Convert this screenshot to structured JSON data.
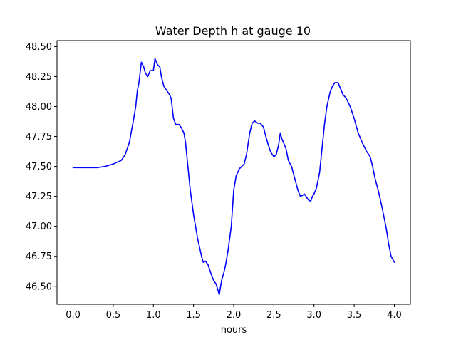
{
  "chart_data": {
    "type": "line",
    "title": "Water Depth h at gauge 10",
    "xlabel": "hours",
    "ylabel": "",
    "xlim": [
      -0.2,
      4.2
    ],
    "ylim": [
      46.35,
      48.55
    ],
    "xticks": [
      0.0,
      0.5,
      1.0,
      1.5,
      2.0,
      2.5,
      3.0,
      3.5,
      4.0
    ],
    "xtick_labels": [
      "0.0",
      "0.5",
      "1.0",
      "1.5",
      "2.0",
      "2.5",
      "3.0",
      "3.5",
      "4.0"
    ],
    "yticks": [
      46.5,
      46.75,
      47.0,
      47.25,
      47.5,
      47.75,
      48.0,
      48.25,
      48.5
    ],
    "ytick_labels": [
      "46.50",
      "46.75",
      "47.00",
      "47.25",
      "47.50",
      "47.75",
      "48.00",
      "48.25",
      "48.50"
    ],
    "grid": false,
    "series": [
      {
        "color": "#0000ff",
        "x": [
          0.0,
          0.15,
          0.3,
          0.4,
          0.5,
          0.6,
          0.65,
          0.7,
          0.75,
          0.78,
          0.8,
          0.82,
          0.85,
          0.88,
          0.9,
          0.93,
          0.96,
          1.0,
          1.02,
          1.05,
          1.08,
          1.1,
          1.13,
          1.17,
          1.2,
          1.22,
          1.25,
          1.28,
          1.32,
          1.35,
          1.38,
          1.4,
          1.43,
          1.46,
          1.5,
          1.55,
          1.6,
          1.62,
          1.65,
          1.68,
          1.72,
          1.75,
          1.78,
          1.82,
          1.85,
          1.88,
          1.9,
          1.93,
          1.97,
          2.0,
          2.03,
          2.07,
          2.1,
          2.13,
          2.16,
          2.2,
          2.23,
          2.26,
          2.3,
          2.33,
          2.37,
          2.4,
          2.43,
          2.46,
          2.5,
          2.53,
          2.56,
          2.58,
          2.6,
          2.62,
          2.65,
          2.68,
          2.72,
          2.76,
          2.8,
          2.83,
          2.86,
          2.88,
          2.9,
          2.93,
          2.96,
          2.98,
          3.0,
          3.03,
          3.07,
          3.1,
          3.13,
          3.16,
          3.2,
          3.23,
          3.26,
          3.3,
          3.33,
          3.36,
          3.4,
          3.45,
          3.5,
          3.55,
          3.6,
          3.65,
          3.7,
          3.73,
          3.76,
          3.8,
          3.85,
          3.9,
          3.93,
          3.96,
          4.0
        ],
        "y": [
          47.49,
          47.49,
          47.49,
          47.5,
          47.52,
          47.55,
          47.6,
          47.7,
          47.88,
          48.0,
          48.13,
          48.2,
          48.37,
          48.33,
          48.28,
          48.25,
          48.3,
          48.3,
          48.4,
          48.35,
          48.33,
          48.25,
          48.17,
          48.13,
          48.1,
          48.07,
          47.9,
          47.85,
          47.85,
          47.82,
          47.78,
          47.7,
          47.5,
          47.3,
          47.1,
          46.9,
          46.75,
          46.7,
          46.71,
          46.68,
          46.6,
          46.55,
          46.52,
          46.43,
          46.55,
          46.62,
          46.68,
          46.8,
          47.0,
          47.3,
          47.42,
          47.48,
          47.5,
          47.52,
          47.6,
          47.78,
          47.86,
          47.88,
          47.86,
          47.86,
          47.83,
          47.75,
          47.68,
          47.62,
          47.58,
          47.6,
          47.68,
          47.78,
          47.73,
          47.7,
          47.65,
          47.55,
          47.5,
          47.4,
          47.3,
          47.25,
          47.26,
          47.27,
          47.25,
          47.22,
          47.21,
          47.25,
          47.27,
          47.32,
          47.45,
          47.65,
          47.85,
          48.0,
          48.12,
          48.17,
          48.2,
          48.2,
          48.15,
          48.1,
          48.07,
          48.0,
          47.9,
          47.78,
          47.7,
          47.63,
          47.58,
          47.5,
          47.4,
          47.3,
          47.15,
          46.98,
          46.85,
          46.75,
          46.7
        ]
      }
    ]
  }
}
